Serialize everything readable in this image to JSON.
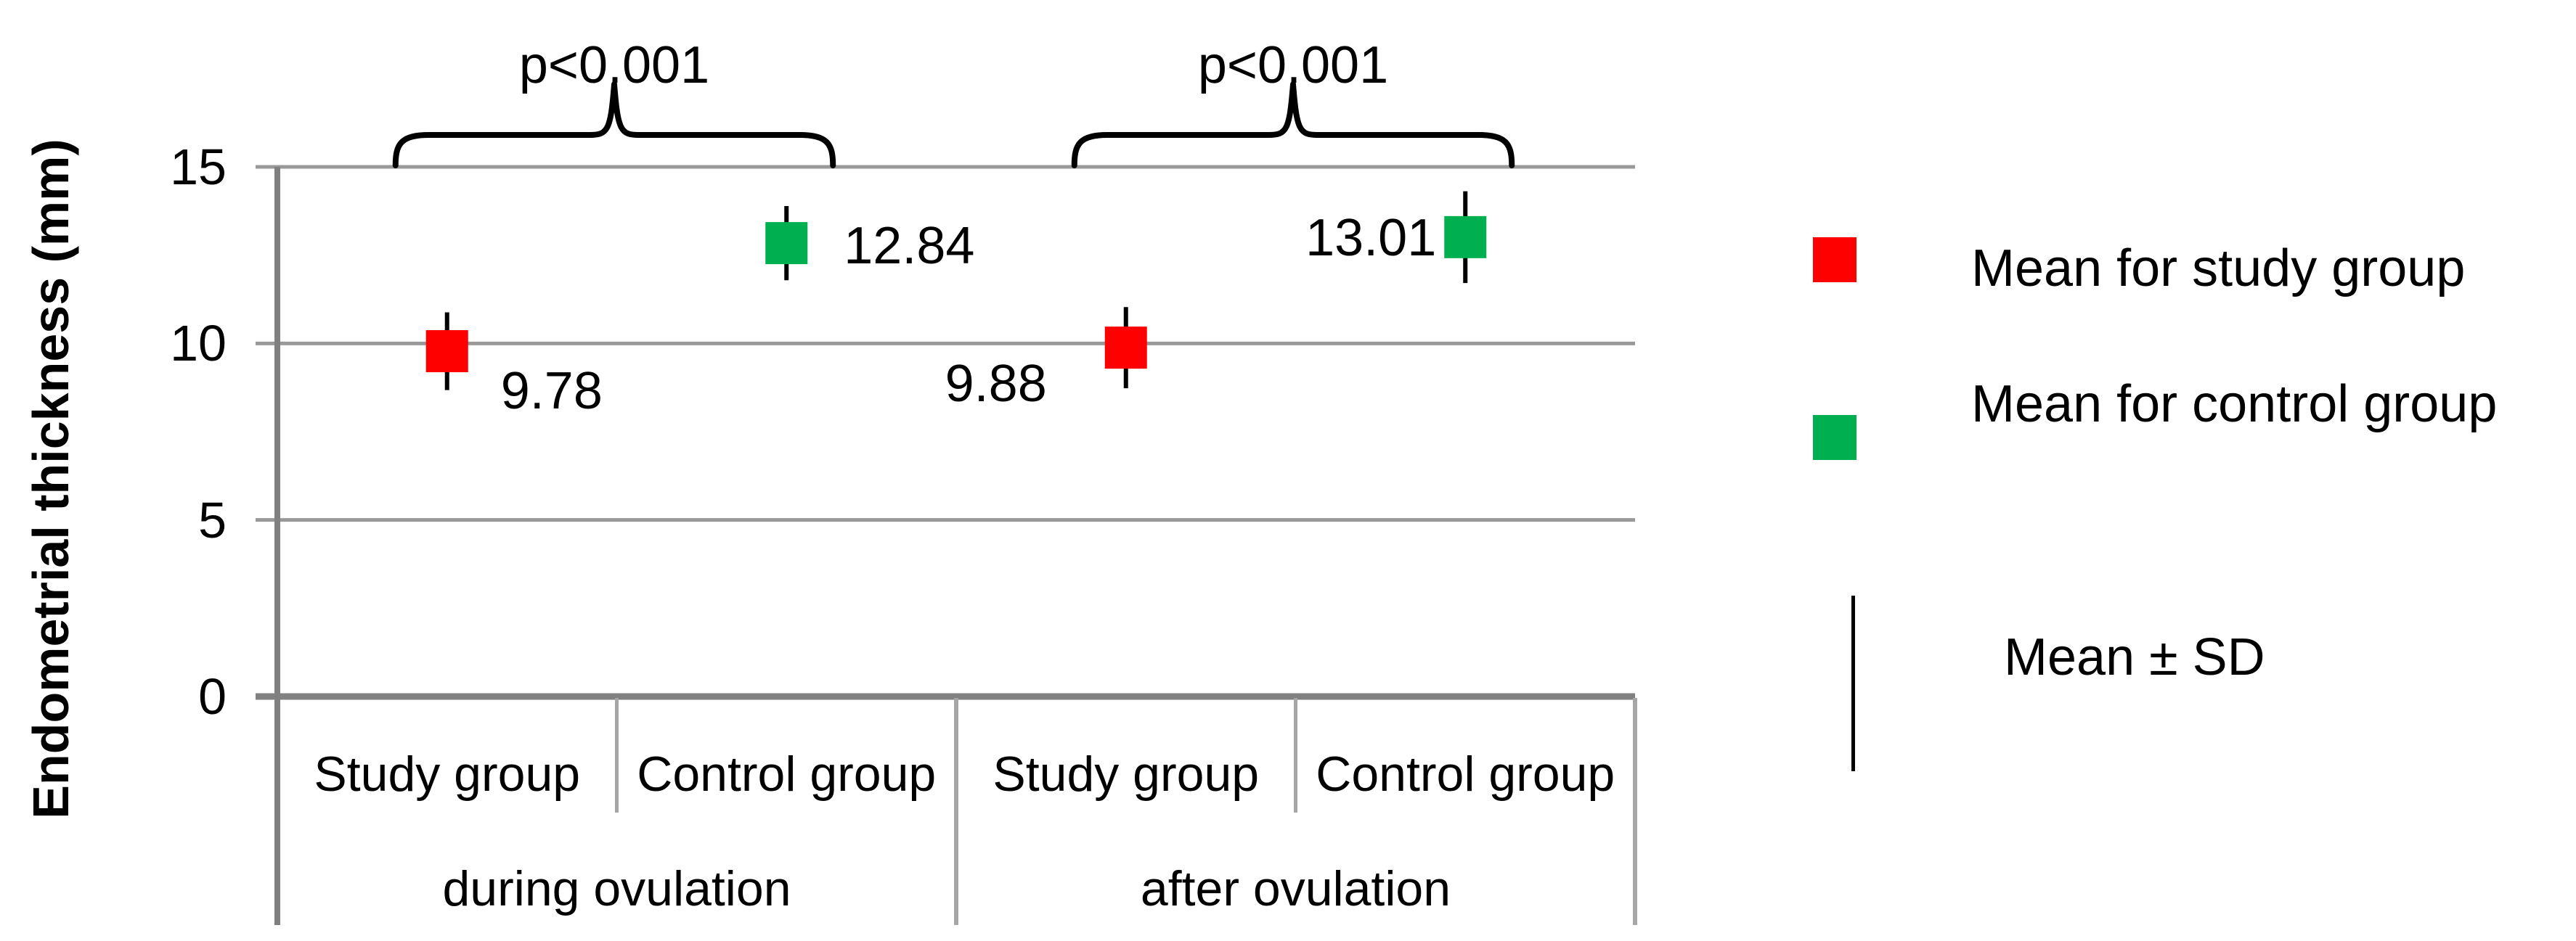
{
  "chart_data": {
    "type": "scatter",
    "title": "",
    "ylabel": "Endometrial thickness (mm)",
    "xlabel": "",
    "ylim": [
      0,
      16.8
    ],
    "yticks": [
      0,
      5,
      10,
      15
    ],
    "grid": "horizontal",
    "legend_position": "right",
    "x_groups": [
      {
        "label": "during ovulation",
        "categories": [
          "Study group",
          "Control group"
        ]
      },
      {
        "label": "after ovulation",
        "categories": [
          "Study group",
          "Control group"
        ]
      }
    ],
    "series": [
      {
        "name": "Mean for study group",
        "marker": "square",
        "color": "#ff0000",
        "points": [
          {
            "group": "during ovulation",
            "category": "Study group",
            "category_index": 0,
            "mean": 9.78,
            "sd_approx": 1.1,
            "label": "9.78"
          },
          {
            "group": "after ovulation",
            "category": "Study group",
            "category_index": 2,
            "mean": 9.88,
            "sd_approx": 1.15,
            "label": "9.88"
          }
        ]
      },
      {
        "name": "Mean for control group",
        "marker": "square",
        "color": "#00b050",
        "points": [
          {
            "group": "during ovulation",
            "category": "Control group",
            "category_index": 1,
            "mean": 12.84,
            "sd_approx": 1.05,
            "label": "12.84"
          },
          {
            "group": "after ovulation",
            "category": "Control group",
            "category_index": 3,
            "mean": 13.01,
            "sd_approx": 1.3,
            "label": "13.01"
          }
        ]
      }
    ],
    "error_bars": "Mean ± SD",
    "annotations": [
      {
        "label": "p<0.001",
        "between_category_indices": [
          0,
          1
        ]
      },
      {
        "label": "p<0.001",
        "between_category_indices": [
          2,
          3
        ]
      }
    ]
  },
  "legend": {
    "items": [
      {
        "label": "Mean for study group",
        "color": "#ff0000",
        "swatch": "square"
      },
      {
        "label": "Mean for control group",
        "color": "#00b050",
        "swatch": "square"
      }
    ],
    "errorbar": {
      "label": "Mean ± SD",
      "symbol": "vertical-line"
    }
  },
  "colors": {
    "study_group": "#ff0000",
    "control_group": "#00b050",
    "gridline": "#999999",
    "axis_line": "#808080",
    "divider": "#a6a6a6",
    "text": "#000000",
    "background": "#ffffff"
  }
}
